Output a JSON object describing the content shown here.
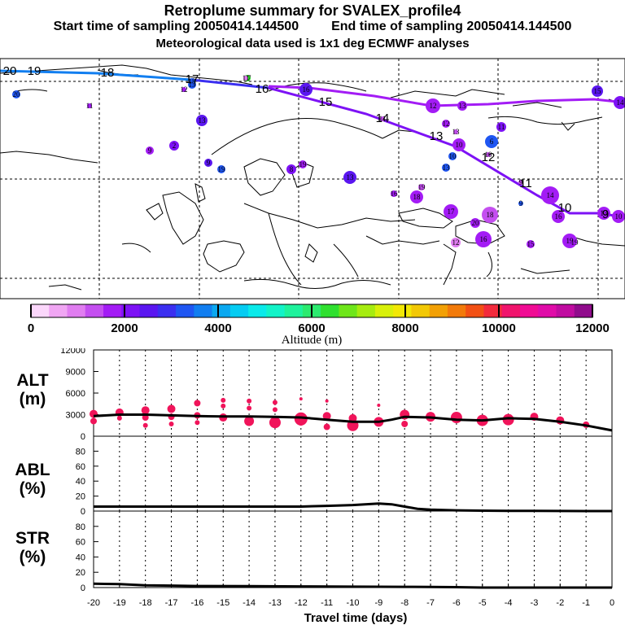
{
  "header": {
    "title": "Retroplume summary for SVALEX_profile4",
    "start_label": "Start time of sampling 20050414.144500",
    "end_label": "End time of sampling 20050414.144500",
    "meteo_label": "Meteorological data used is 1x1 deg ECMWF analyses"
  },
  "colorbar": {
    "tick_labels": [
      "0",
      "2000",
      "4000",
      "6000",
      "8000",
      "10000",
      "12000"
    ],
    "label": "Altitude (m)",
    "colors": [
      "#fbd7fb",
      "#f0a6f3",
      "#e07df0",
      "#c44ff0",
      "#a31cf5",
      "#7d12f5",
      "#5a16f0",
      "#3b2ff0",
      "#1f56f2",
      "#117ef0",
      "#0aa8f0",
      "#05ccf2",
      "#0aeaea",
      "#12f3c8",
      "#1ef29c",
      "#2bea6f",
      "#2fe02f",
      "#6ee61a",
      "#a6ec10",
      "#d8f00a",
      "#f2e805",
      "#f2c805",
      "#f2a005",
      "#f27a0a",
      "#f25014",
      "#f22a3c",
      "#f0146c",
      "#f00c94",
      "#e00ca8",
      "#c00ca0",
      "#900c8c"
    ]
  },
  "map": {
    "track_labels": [
      {
        "text": "20",
        "color": "#000"
      },
      {
        "text": "19",
        "color": "#000"
      },
      {
        "text": "18",
        "color": "#000"
      },
      {
        "text": "17",
        "color": "#000"
      },
      {
        "text": "16",
        "color": "#000"
      },
      {
        "text": "15",
        "color": "#000"
      },
      {
        "text": "14",
        "color": "#000"
      },
      {
        "text": "13",
        "color": "#000"
      },
      {
        "text": "12",
        "color": "#000"
      },
      {
        "text": "11",
        "color": "#000"
      },
      {
        "text": "10",
        "color": "#000"
      },
      {
        "text": "9",
        "color": "#000"
      }
    ],
    "clusters": [
      {
        "text": "20",
        "color": "#1f56f2"
      },
      {
        "text": "19",
        "color": "#1f56f2"
      },
      {
        "text": "18",
        "color": "#1f56f2"
      },
      {
        "text": "17",
        "color": "#2fe02f"
      },
      {
        "text": "16",
        "color": "#5a16f0"
      },
      {
        "text": "15",
        "color": "#5a16f0"
      },
      {
        "text": "14",
        "color": "#7d12f5"
      },
      {
        "text": "13",
        "color": "#5a16f0"
      },
      {
        "text": "12",
        "color": "#a31cf5"
      },
      {
        "text": "11",
        "color": "#7d12f5"
      },
      {
        "text": "10",
        "color": "#a31cf5"
      },
      {
        "text": "9",
        "color": "#a31cf5"
      },
      {
        "text": "2",
        "color": "#7d12f5"
      },
      {
        "text": "6",
        "color": "#1f56f2"
      },
      {
        "text": "10",
        "color": "#1f56f2"
      },
      {
        "text": "9",
        "color": "#5a16f0"
      },
      {
        "text": "19",
        "color": "#1f56f2"
      },
      {
        "text": "8",
        "color": "#7d12f5"
      },
      {
        "text": "19",
        "color": "#a31cf5"
      },
      {
        "text": "13",
        "color": "#5a16f0"
      },
      {
        "text": "13",
        "color": "#1f56f2"
      },
      {
        "text": "16",
        "color": "#a31cf5"
      },
      {
        "text": "19",
        "color": "#c44ff0"
      },
      {
        "text": "18",
        "color": "#a31cf5"
      },
      {
        "text": "17",
        "color": "#a31cf5"
      },
      {
        "text": "20",
        "color": "#a31cf5"
      },
      {
        "text": "18",
        "color": "#c44ff0"
      },
      {
        "text": "16",
        "color": "#a31cf5"
      },
      {
        "text": "12",
        "color": "#e07df0"
      },
      {
        "text": "15",
        "color": "#a31cf5"
      },
      {
        "text": "19",
        "color": "#a31cf5"
      },
      {
        "text": "12",
        "color": "#a31cf5"
      },
      {
        "text": "13",
        "color": "#a31cf5"
      },
      {
        "text": "14",
        "color": "#a31cf5"
      },
      {
        "text": "16",
        "color": "#a31cf5"
      },
      {
        "text": "13",
        "color": "#a31cf5"
      },
      {
        "text": "10",
        "color": "#a31cf5"
      },
      {
        "text": "11",
        "color": "#e07df0"
      },
      {
        "text": "9",
        "color": "#1f56f2"
      },
      {
        "text": "19",
        "color": "#a31cf5"
      },
      {
        "text": "11",
        "color": "#a31cf5"
      },
      {
        "text": "12",
        "color": "#a31cf5"
      },
      {
        "text": "11",
        "color": "#c44ff0"
      },
      {
        "text": "13",
        "color": "#c44ff0"
      },
      {
        "text": "10",
        "color": "#c44ff0"
      },
      {
        "text": "9",
        "color": "#c44ff0"
      }
    ]
  },
  "chart_data": [
    {
      "type": "line",
      "panel": "ALT",
      "ylabel_lines": [
        "ALT",
        "(m)"
      ],
      "ylim": [
        0,
        12000
      ],
      "yticks": [
        "0",
        "3000",
        "6000",
        "9000",
        "12000"
      ],
      "ytick_values": [
        0,
        3000,
        6000,
        9000,
        12000
      ],
      "xlim": [
        -20,
        0
      ],
      "series": [
        {
          "name": "mean altitude",
          "x": [
            -20,
            -19,
            -18,
            -17,
            -16,
            -15,
            -14,
            -13,
            -12,
            -11,
            -10,
            -9,
            -8.5,
            -8,
            -7,
            -6,
            -5,
            -4,
            -3,
            -2,
            -1,
            0
          ],
          "y": [
            2800,
            3000,
            3000,
            2900,
            2800,
            2750,
            2750,
            2700,
            2600,
            2300,
            2000,
            2000,
            2300,
            2700,
            2600,
            2300,
            2200,
            2500,
            2400,
            2000,
            1500,
            800
          ]
        }
      ],
      "cluster_markers": {
        "x": [
          -20,
          -20,
          -19,
          -19,
          -18,
          -18,
          -18,
          -17,
          -17,
          -17,
          -16,
          -16,
          -16,
          -15,
          -15,
          -15,
          -14,
          -14,
          -14,
          -13,
          -13,
          -13,
          -12,
          -12,
          -12,
          -11,
          -11,
          -11,
          -10,
          -10,
          -9,
          -9,
          -8,
          -8,
          -7,
          -6,
          -5,
          -4,
          -3,
          -2,
          -1
        ],
        "y": [
          3100,
          2100,
          3300,
          2500,
          3600,
          2600,
          1500,
          3800,
          2700,
          1700,
          4600,
          2900,
          1900,
          5000,
          4200,
          2600,
          4900,
          3900,
          2100,
          4700,
          3700,
          1900,
          5200,
          2400,
          1800,
          4900,
          2800,
          1300,
          2500,
          1500,
          4300,
          2000,
          3000,
          1700,
          2700,
          2600,
          2200,
          2300,
          2700,
          2200,
          1600
        ],
        "size": [
          5,
          4,
          5,
          3,
          5,
          4,
          3,
          5,
          4,
          3,
          4,
          4,
          3,
          3,
          3,
          5,
          3,
          3,
          6,
          3,
          3,
          7,
          2,
          8,
          3,
          2,
          5,
          4,
          5,
          7,
          2,
          6,
          6,
          4,
          6,
          7,
          7,
          7,
          5,
          5,
          4
        ]
      }
    },
    {
      "type": "line",
      "panel": "ABL",
      "ylabel_lines": [
        "ABL",
        "(%)"
      ],
      "ylim": [
        0,
        100
      ],
      "yticks": [
        "0",
        "20",
        "40",
        "60",
        "80"
      ],
      "ytick_values": [
        0,
        20,
        40,
        60,
        80
      ],
      "xlim": [
        -20,
        0
      ],
      "series": [
        {
          "name": "fraction in ABL",
          "x": [
            -20,
            -18,
            -16,
            -14,
            -12,
            -11,
            -10,
            -9,
            -8.5,
            -8,
            -7.5,
            -7,
            -6,
            -5,
            -4,
            -3,
            -2,
            -1,
            0
          ],
          "y": [
            6,
            6,
            6,
            6,
            6,
            7,
            8,
            10,
            9,
            6,
            3,
            2,
            1,
            0.5,
            0.3,
            0.2,
            0.1,
            0,
            0
          ]
        }
      ]
    },
    {
      "type": "line",
      "panel": "STR",
      "ylabel_lines": [
        "STR",
        "(%)"
      ],
      "ylim": [
        0,
        100
      ],
      "yticks": [
        "0",
        "20",
        "40",
        "60",
        "80"
      ],
      "ytick_values": [
        0,
        20,
        40,
        60,
        80
      ],
      "xlim": [
        -20,
        0
      ],
      "xlabel": "Travel time (days)",
      "xticks": [
        "-20",
        "-19",
        "-18",
        "-17",
        "-16",
        "-15",
        "-14",
        "-13",
        "-12",
        "-11",
        "-10",
        "-9",
        "-8",
        "-7",
        "-6",
        "-5",
        "-4",
        "-3",
        "-2",
        "-1",
        "0"
      ],
      "series": [
        {
          "name": "fraction in stratosphere",
          "x": [
            -20,
            -19,
            -18,
            -17,
            -16,
            -14,
            -12,
            -10,
            -8,
            -7,
            -6,
            -5.5,
            -5,
            0
          ],
          "y": [
            5,
            4.5,
            3,
            2.5,
            2,
            1.8,
            1.5,
            1.2,
            1,
            0.8,
            0.5,
            0.2,
            0,
            0
          ]
        }
      ]
    }
  ]
}
